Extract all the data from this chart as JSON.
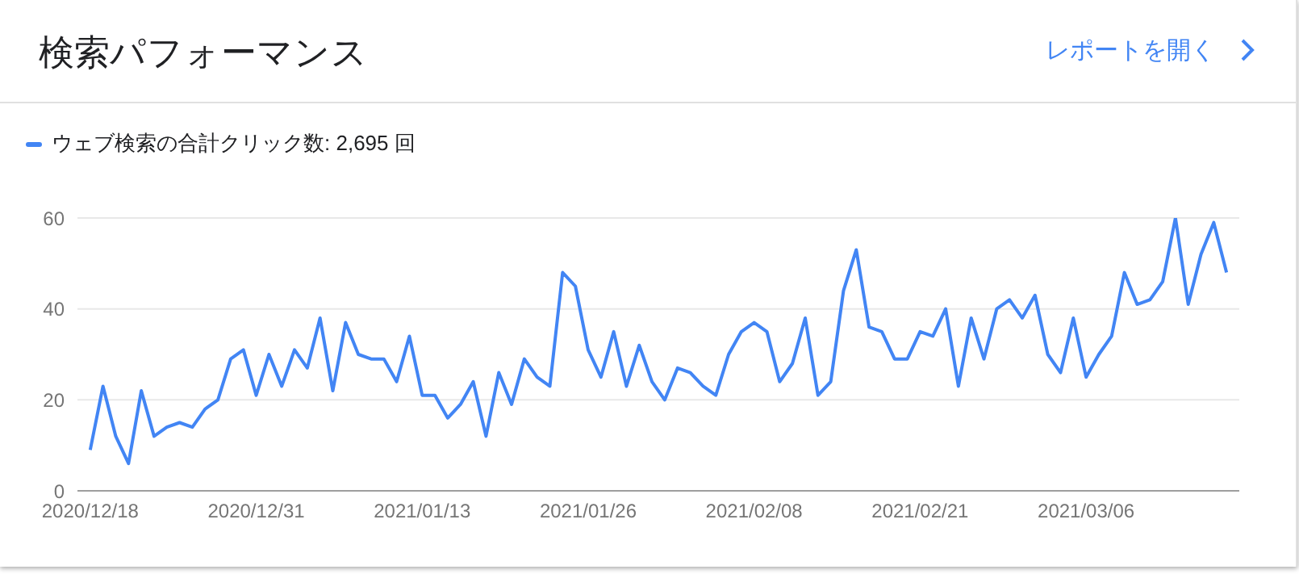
{
  "chart_data": {
    "type": "line",
    "title": "検索パフォーマンス",
    "annotations": [
      "レポートを開く"
    ],
    "x": [
      "2020-12-18",
      "2020-12-19",
      "2020-12-20",
      "2020-12-21",
      "2020-12-22",
      "2020-12-23",
      "2020-12-24",
      "2020-12-25",
      "2020-12-26",
      "2020-12-27",
      "2020-12-28",
      "2020-12-29",
      "2020-12-30",
      "2020-12-31",
      "2021-01-01",
      "2021-01-02",
      "2021-01-03",
      "2021-01-04",
      "2021-01-05",
      "2021-01-06",
      "2021-01-07",
      "2021-01-08",
      "2021-01-09",
      "2021-01-10",
      "2021-01-11",
      "2021-01-12",
      "2021-01-13",
      "2021-01-14",
      "2021-01-15",
      "2021-01-16",
      "2021-01-17",
      "2021-01-18",
      "2021-01-19",
      "2021-01-20",
      "2021-01-21",
      "2021-01-22",
      "2021-01-23",
      "2021-01-24",
      "2021-01-25",
      "2021-01-26",
      "2021-01-27",
      "2021-01-28",
      "2021-01-29",
      "2021-01-30",
      "2021-01-31",
      "2021-02-01",
      "2021-02-02",
      "2021-02-03",
      "2021-02-04",
      "2021-02-05",
      "2021-02-06",
      "2021-02-07",
      "2021-02-08",
      "2021-02-09",
      "2021-02-10",
      "2021-02-11",
      "2021-02-12",
      "2021-02-13",
      "2021-02-14",
      "2021-02-15",
      "2021-02-16",
      "2021-02-17",
      "2021-02-18",
      "2021-02-19",
      "2021-02-20",
      "2021-02-21",
      "2021-02-22",
      "2021-02-23",
      "2021-02-24",
      "2021-02-25",
      "2021-02-26",
      "2021-02-27",
      "2021-02-28",
      "2021-03-01",
      "2021-03-02",
      "2021-03-03",
      "2021-03-04",
      "2021-03-05",
      "2021-03-06",
      "2021-03-07",
      "2021-03-08",
      "2021-03-09",
      "2021-03-10",
      "2021-03-11",
      "2021-03-12",
      "2021-03-13",
      "2021-03-14",
      "2021-03-15",
      "2021-03-16",
      "2021-03-17"
    ],
    "series": [
      {
        "name": "ウェブ検索の合計クリック数: 2,695 回",
        "color": "#4285f4",
        "values": [
          9,
          23,
          12,
          6,
          22,
          12,
          14,
          15,
          14,
          18,
          20,
          29,
          31,
          21,
          30,
          23,
          31,
          27,
          38,
          22,
          37,
          30,
          29,
          29,
          24,
          34,
          21,
          21,
          16,
          19,
          24,
          12,
          26,
          19,
          29,
          25,
          23,
          48,
          45,
          31,
          25,
          35,
          23,
          32,
          24,
          20,
          27,
          26,
          23,
          21,
          30,
          35,
          37,
          35,
          24,
          28,
          38,
          21,
          24,
          44,
          53,
          36,
          35,
          29,
          29,
          35,
          34,
          40,
          23,
          38,
          29,
          40,
          42,
          38,
          43,
          30,
          26,
          38,
          25,
          30,
          34,
          48,
          41,
          42,
          46,
          60,
          41,
          52,
          59,
          48
        ]
      }
    ],
    "xlim": [
      "2020-12-17",
      "2021-03-18"
    ],
    "xticks": [
      {
        "value": "2020-12-18",
        "label": "2020/12/18"
      },
      {
        "value": "2020-12-31",
        "label": "2020/12/31"
      },
      {
        "value": "2021-01-13",
        "label": "2021/01/13"
      },
      {
        "value": "2021-01-26",
        "label": "2021/01/26"
      },
      {
        "value": "2021-02-08",
        "label": "2021/02/08"
      },
      {
        "value": "2021-02-21",
        "label": "2021/02/21"
      },
      {
        "value": "2021-03-06",
        "label": "2021/03/06"
      }
    ],
    "ylim": [
      0,
      60
    ],
    "yticks": [
      0,
      20,
      40,
      60
    ],
    "grid": "y",
    "legend": "top left",
    "marker": "none",
    "line_style": "solid"
  }
}
